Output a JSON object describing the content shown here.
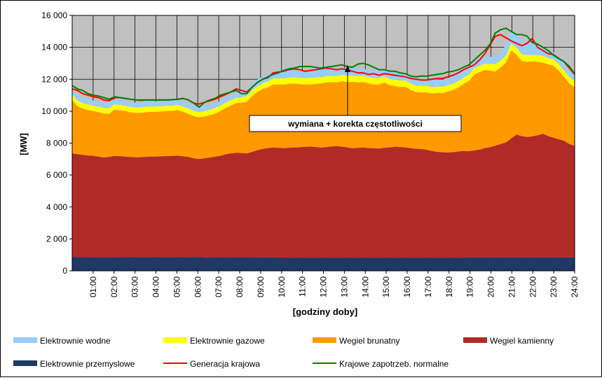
{
  "chart_data": {
    "type": "area",
    "stacked": true,
    "annotation": "wymiana + korekta częstotliwości",
    "xlabel": "[godziny doby]",
    "ylabel": "[MW]",
    "ylim": [
      0,
      16000
    ],
    "yticks": [
      0,
      2000,
      4000,
      6000,
      8000,
      10000,
      12000,
      14000,
      16000
    ],
    "ytick_labels": [
      "0",
      "2 000",
      "4 000",
      "6 000",
      "8 000",
      "10 000",
      "12 000",
      "14 000",
      "16 000"
    ],
    "x_tick_labels": [
      "01:00",
      "02:00",
      "03:00",
      "04:00",
      "05:00",
      "06:00",
      "07:00",
      "08:00",
      "09:00",
      "10:00",
      "11:00",
      "12:00",
      "13:00",
      "14:00",
      "15:00",
      "16:00",
      "17:00",
      "18:00",
      "19:00",
      "20:00",
      "21:00",
      "22:00",
      "23:00",
      "24:00"
    ],
    "x_step": "15 min",
    "grid": true,
    "legend_position": "bottom",
    "colors": {
      "plot_background": "#c0c0c0",
      "Elektrownie przemyslowe": "#1f3864",
      "Wegiel kamienny": "#b22a27",
      "Wegiel brunatny": "#ff9900",
      "Elektrownie gazowe": "#ffff00",
      "Elektrownie wodne": "#99ccff",
      "Generacja krajowa": "#ff0000",
      "Krajowe zapotrzeb. normalne": "#008000"
    },
    "stack_series": [
      {
        "name": "Elektrownie przemyslowe",
        "values": [
          850,
          860,
          860,
          850,
          850,
          850,
          850,
          850,
          850,
          850,
          860,
          860,
          860,
          860,
          860,
          860,
          860,
          860,
          860,
          860,
          860,
          860,
          860,
          860,
          860,
          850,
          850,
          850,
          850,
          850,
          850,
          850,
          850,
          850,
          850,
          850,
          840,
          840,
          840,
          840,
          830,
          830,
          830,
          830,
          830,
          830,
          830,
          830,
          830,
          830,
          830,
          830,
          830,
          830,
          830,
          830,
          830,
          830,
          830,
          830,
          830,
          830,
          830,
          830,
          830,
          830,
          830,
          830,
          830,
          830,
          830,
          830,
          830,
          830,
          830,
          840,
          840,
          840,
          840,
          840,
          840,
          840,
          840,
          840,
          840,
          840,
          840,
          840,
          840,
          840,
          840,
          840,
          840,
          840,
          840,
          840
        ]
      },
      {
        "name": "Wegiel kamienny",
        "values": [
          6500,
          6450,
          6400,
          6380,
          6350,
          6300,
          6250,
          6280,
          6350,
          6330,
          6300,
          6270,
          6250,
          6260,
          6280,
          6300,
          6300,
          6320,
          6330,
          6340,
          6350,
          6310,
          6270,
          6180,
          6150,
          6200,
          6250,
          6300,
          6350,
          6450,
          6500,
          6550,
          6530,
          6500,
          6600,
          6700,
          6800,
          6850,
          6880,
          6860,
          6850,
          6880,
          6900,
          6920,
          6940,
          6950,
          6930,
          6900,
          6920,
          6960,
          6980,
          6950,
          6900,
          6850,
          6870,
          6890,
          6860,
          6850,
          6830,
          6870,
          6900,
          6950,
          6930,
          6900,
          6850,
          6820,
          6800,
          6750,
          6680,
          6620,
          6600,
          6590,
          6600,
          6650,
          6680,
          6650,
          6700,
          6750,
          6850,
          6900,
          7000,
          7100,
          7200,
          7450,
          7700,
          7600,
          7550,
          7580,
          7650,
          7750,
          7600,
          7500,
          7400,
          7300,
          7100,
          7000
        ]
      },
      {
        "name": "Wegiel brunatny",
        "values": [
          3350,
          3000,
          2900,
          2850,
          2800,
          2790,
          2750,
          2700,
          2900,
          2880,
          2850,
          2800,
          2780,
          2780,
          2800,
          2800,
          2800,
          2800,
          2810,
          2820,
          2850,
          2780,
          2700,
          2650,
          2600,
          2620,
          2650,
          2700,
          2800,
          2900,
          3000,
          3100,
          3150,
          3250,
          3500,
          3650,
          3750,
          3800,
          3950,
          3980,
          3990,
          4000,
          4000,
          3950,
          3900,
          3900,
          3950,
          4000,
          4050,
          4030,
          4000,
          4100,
          4100,
          4150,
          4100,
          4100,
          4050,
          4000,
          4000,
          4100,
          3900,
          3800,
          3750,
          3800,
          3650,
          3550,
          3550,
          3600,
          3600,
          3700,
          3700,
          3800,
          3900,
          4000,
          4200,
          4400,
          4750,
          4850,
          4900,
          4800,
          4650,
          4800,
          5000,
          5500,
          5000,
          4700,
          4700,
          4700,
          4600,
          4450,
          4500,
          4500,
          4300,
          4000,
          3800,
          3650
        ]
      },
      {
        "name": "Elektrownie gazowe",
        "values": [
          350,
          350,
          350,
          350,
          350,
          350,
          350,
          350,
          340,
          340,
          340,
          340,
          340,
          340,
          340,
          340,
          340,
          340,
          340,
          340,
          340,
          340,
          340,
          340,
          340,
          340,
          340,
          340,
          340,
          340,
          340,
          340,
          340,
          350,
          350,
          360,
          360,
          370,
          380,
          380,
          380,
          390,
          390,
          390,
          400,
          400,
          400,
          400,
          400,
          400,
          400,
          400,
          400,
          400,
          400,
          400,
          400,
          400,
          400,
          400,
          400,
          400,
          400,
          400,
          400,
          400,
          400,
          400,
          400,
          400,
          400,
          400,
          400,
          400,
          400,
          400,
          400,
          400,
          400,
          420,
          450,
          450,
          450,
          450,
          450,
          420,
          420,
          420,
          420,
          420,
          400,
          400,
          400,
          400,
          400,
          400
        ]
      },
      {
        "name": "Elektrownie wodne",
        "values": [
          300,
          300,
          300,
          300,
          300,
          300,
          300,
          300,
          300,
          300,
          300,
          300,
          300,
          300,
          300,
          300,
          300,
          300,
          300,
          300,
          300,
          300,
          300,
          300,
          300,
          300,
          300,
          300,
          300,
          300,
          300,
          300,
          350,
          380,
          400,
          420,
          430,
          450,
          450,
          450,
          450,
          450,
          450,
          450,
          450,
          450,
          450,
          450,
          450,
          450,
          450,
          450,
          450,
          450,
          450,
          450,
          450,
          450,
          450,
          450,
          450,
          450,
          450,
          450,
          450,
          450,
          450,
          450,
          450,
          450,
          450,
          450,
          450,
          450,
          450,
          450,
          450,
          450,
          450,
          450,
          450,
          450,
          700,
          750,
          800,
          800,
          700,
          800,
          600,
          500,
          500,
          450,
          450,
          450,
          400,
          300
        ]
      }
    ],
    "line_series": [
      {
        "name": "Generacja krajowa",
        "values": [
          11400,
          11300,
          11100,
          11000,
          10900,
          10850,
          10700,
          10650,
          10850,
          10850,
          10800,
          10750,
          10700,
          10680,
          10700,
          10700,
          10700,
          10710,
          10700,
          10720,
          10750,
          10800,
          10700,
          10500,
          10450,
          10550,
          10650,
          10750,
          10900,
          11050,
          11200,
          11400,
          11300,
          11200,
          11500,
          11800,
          12000,
          12100,
          12400,
          12450,
          12500,
          12600,
          12650,
          12600,
          12500,
          12550,
          12600,
          12650,
          12700,
          12650,
          12600,
          12650,
          12600,
          12500,
          12400,
          12400,
          12300,
          12350,
          12250,
          12350,
          12300,
          12250,
          12200,
          12150,
          12050,
          12000,
          11950,
          11950,
          12000,
          12050,
          12050,
          12150,
          12250,
          12400,
          12600,
          12750,
          12900,
          13200,
          13600,
          14150,
          14700,
          14800,
          14600,
          14400,
          14250,
          14100,
          14250,
          14550,
          14000,
          13800,
          13600,
          13550,
          13300,
          13100,
          12700,
          12300
        ]
      },
      {
        "name": "Krajowe zapotrzeb. normalne",
        "values": [
          11600,
          11400,
          11300,
          11100,
          11000,
          10950,
          10850,
          10750,
          10900,
          10850,
          10800,
          10750,
          10700,
          10700,
          10700,
          10700,
          10700,
          10700,
          10700,
          10720,
          10750,
          10800,
          10700,
          10500,
          10250,
          10550,
          10700,
          10800,
          11000,
          11100,
          11200,
          11300,
          11100,
          11100,
          11500,
          11800,
          12000,
          12150,
          12300,
          12400,
          12550,
          12650,
          12700,
          12800,
          12800,
          12800,
          12750,
          12700,
          12750,
          12800,
          12850,
          12900,
          12800,
          12750,
          12950,
          13000,
          12900,
          12750,
          12600,
          12600,
          12500,
          12500,
          12400,
          12350,
          12200,
          12150,
          12200,
          12200,
          12250,
          12300,
          12350,
          12450,
          12500,
          12600,
          12750,
          12900,
          13200,
          13500,
          13800,
          14200,
          14900,
          15100,
          15200,
          15000,
          14800,
          14800,
          14700,
          14300,
          14200,
          14000,
          13800,
          13500,
          13300,
          13100,
          12800,
          12350
        ]
      }
    ]
  },
  "legend": {
    "items": [
      {
        "label": "Elektrownie wodne",
        "kind": "box",
        "color": "#99ccff"
      },
      {
        "label": "Elektrownie gazowe",
        "kind": "box",
        "color": "#ffff00"
      },
      {
        "label": "Wegiel brunatny",
        "kind": "box",
        "color": "#ff9900"
      },
      {
        "label": "Wegiel kamienny",
        "kind": "box",
        "color": "#b22a27"
      },
      {
        "label": "Elektrownie przemyslowe",
        "kind": "box",
        "color": "#1f3864"
      },
      {
        "label": "Generacja krajowa",
        "kind": "line",
        "color": "#ff0000"
      },
      {
        "label": "Krajowe zapotrzeb. normalne",
        "kind": "line",
        "color": "#008000"
      }
    ]
  }
}
